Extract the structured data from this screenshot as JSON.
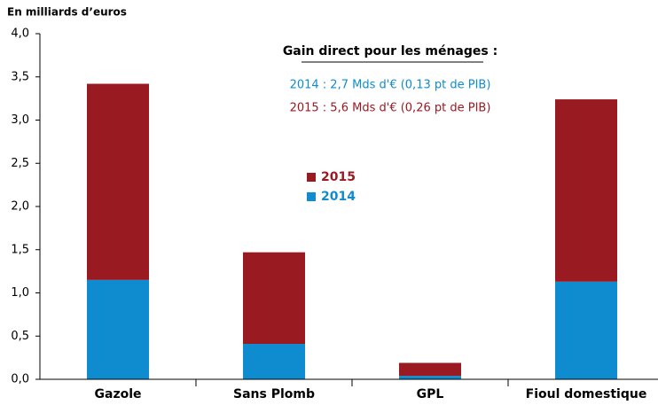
{
  "chart_data": {
    "type": "stacked_bar",
    "y_axis_label": "En milliards d’euros",
    "annotations": [
      "Gain  direct pour les ménages :",
      "2014 : 2,7 Mds d'€ (0,13 pt de PIB)",
      "2015 : 5,6 Mds d'€ (0,26 pt de PIB)"
    ],
    "categories": [
      "Gazole",
      "Sans Plomb",
      "GPL",
      "Fioul domestique"
    ],
    "series": [
      {
        "name": "2014",
        "color": "#0f8bd0",
        "values": [
          1.15,
          0.41,
          0.04,
          1.13
        ]
      },
      {
        "name": "2015",
        "color": "#9a1a21",
        "values": [
          2.27,
          1.06,
          0.15,
          2.11
        ]
      }
    ],
    "ylim": [
      0,
      4
    ],
    "yticks": [
      {
        "value": 0,
        "label": "0,0"
      },
      {
        "value": 0.5,
        "label": "0,5"
      },
      {
        "value": 1,
        "label": "1,0"
      },
      {
        "value": 1.5,
        "label": "1,5"
      },
      {
        "value": 2,
        "label": "2,0"
      },
      {
        "value": 2.5,
        "label": "2,5"
      },
      {
        "value": 3,
        "label": "3,0"
      },
      {
        "value": 3.5,
        "label": "3,5"
      },
      {
        "value": 4,
        "label": "4,0"
      }
    ],
    "grid": false
  }
}
